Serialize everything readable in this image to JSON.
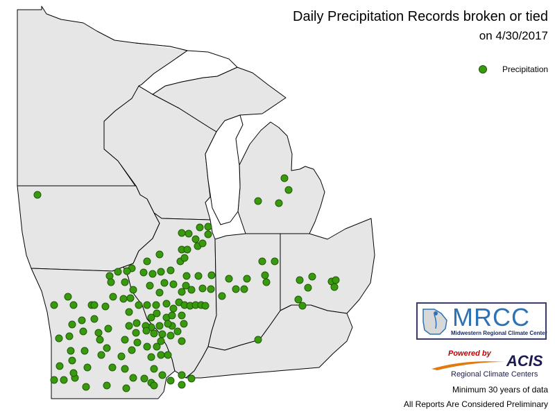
{
  "title": {
    "line1": "Daily Precipitation Records broken or tied",
    "line2": "on 4/30/2017"
  },
  "legend": {
    "label": "Precipitation",
    "color": "#3a9a0f"
  },
  "logos": {
    "mrcc_letters": "MRCC",
    "mrcc_subtitle": "Midwestern Regional Climate Center",
    "acis_powered": "Powered by",
    "acis_word": "ACIS",
    "acis_subtitle": "Regional Climate Centers"
  },
  "notes": {
    "minimum": "Minimum 30 years of data",
    "preliminary": "All Reports Are Considered Preliminary"
  },
  "colors": {
    "land": "#e6e6e6",
    "border": "#000000",
    "marker": "#3a9a0f",
    "background": "#ffffff"
  },
  "map": {
    "region": "Upper Midwest",
    "states": [
      "Minnesota",
      "Wisconsin",
      "Michigan",
      "Iowa",
      "Illinois",
      "Indiana",
      "Ohio",
      "Missouri",
      "Kentucky"
    ],
    "marker_icon": "green-circle"
  }
}
